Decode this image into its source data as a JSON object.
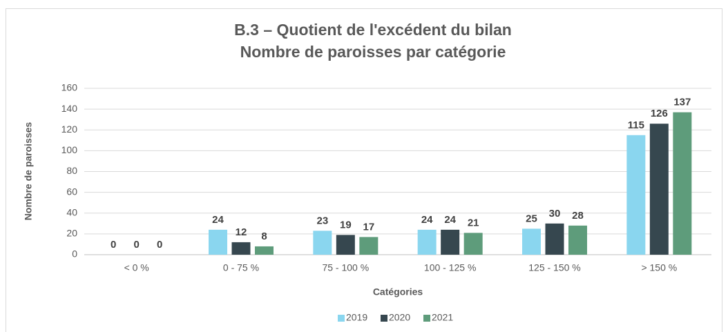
{
  "chart_data": {
    "type": "bar",
    "title": "B.3 – Quotient de l'excédent du bilan",
    "subtitle": "Nombre de paroisses par catégorie",
    "x_label": "Catégories",
    "y_label": "Nombre de paroisses",
    "categories": [
      "< 0 %",
      "0 - 75 %",
      "75 - 100 %",
      "100 - 125 %",
      "125 - 150 %",
      "> 150 %"
    ],
    "series": [
      {
        "name": "2019",
        "color": "#8ad6ef",
        "values": [
          0,
          24,
          23,
          24,
          25,
          115
        ]
      },
      {
        "name": "2020",
        "color": "#36474f",
        "values": [
          0,
          12,
          19,
          24,
          30,
          126
        ]
      },
      {
        "name": "2021",
        "color": "#5e9c7b",
        "values": [
          0,
          8,
          17,
          21,
          28,
          137
        ]
      }
    ],
    "ylim": [
      0,
      160
    ],
    "yticks": [
      0,
      20,
      40,
      60,
      80,
      100,
      120,
      140,
      160
    ],
    "grid": true,
    "legend": "bottom"
  }
}
